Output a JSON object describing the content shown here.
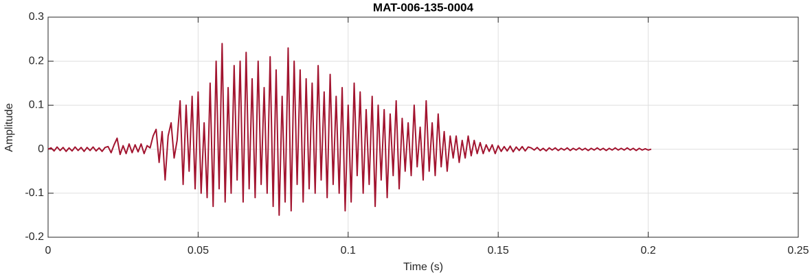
{
  "chart_data": {
    "type": "line",
    "title": "MAT-006-135-0004",
    "xlabel": "Time (s)",
    "ylabel": "Amplitude",
    "color": "#a2142f",
    "grid": true,
    "xlim": [
      0,
      0.25
    ],
    "xticks": [
      0,
      0.05,
      0.1,
      0.15,
      0.2,
      0.25
    ],
    "ylim": [
      -0.2,
      0.3
    ],
    "yticks": [
      -0.2,
      -0.1,
      0,
      0.1,
      0.2,
      0.3
    ],
    "x": [
      0,
      0.001,
      0.002,
      0.003,
      0.004,
      0.005,
      0.006,
      0.007,
      0.008,
      0.009,
      0.01,
      0.011,
      0.012,
      0.013,
      0.014,
      0.015,
      0.016,
      0.017,
      0.018,
      0.019,
      0.02,
      0.021,
      0.022,
      0.023,
      0.024,
      0.025,
      0.026,
      0.027,
      0.028,
      0.029,
      0.03,
      0.031,
      0.032,
      0.033,
      0.034,
      0.035,
      0.036,
      0.037,
      0.038,
      0.039,
      0.04,
      0.041,
      0.042,
      0.043,
      0.044,
      0.045,
      0.046,
      0.047,
      0.048,
      0.049,
      0.05,
      0.051,
      0.052,
      0.053,
      0.054,
      0.055,
      0.056,
      0.057,
      0.058,
      0.059,
      0.06,
      0.061,
      0.062,
      0.063,
      0.064,
      0.065,
      0.066,
      0.067,
      0.068,
      0.069,
      0.07,
      0.071,
      0.072,
      0.073,
      0.074,
      0.075,
      0.076,
      0.077,
      0.078,
      0.079,
      0.08,
      0.081,
      0.082,
      0.083,
      0.084,
      0.085,
      0.086,
      0.087,
      0.088,
      0.089,
      0.09,
      0.091,
      0.092,
      0.093,
      0.094,
      0.095,
      0.096,
      0.097,
      0.098,
      0.099,
      0.1,
      0.101,
      0.102,
      0.103,
      0.104,
      0.105,
      0.106,
      0.107,
      0.108,
      0.109,
      0.11,
      0.111,
      0.112,
      0.113,
      0.114,
      0.115,
      0.116,
      0.117,
      0.118,
      0.119,
      0.12,
      0.121,
      0.122,
      0.123,
      0.124,
      0.125,
      0.126,
      0.127,
      0.128,
      0.129,
      0.13,
      0.131,
      0.132,
      0.133,
      0.134,
      0.135,
      0.136,
      0.137,
      0.138,
      0.139,
      0.14,
      0.141,
      0.142,
      0.143,
      0.144,
      0.145,
      0.146,
      0.147,
      0.148,
      0.149,
      0.15,
      0.151,
      0.152,
      0.153,
      0.154,
      0.155,
      0.156,
      0.157,
      0.158,
      0.159,
      0.16,
      0.161,
      0.162,
      0.163,
      0.164,
      0.165,
      0.166,
      0.167,
      0.168,
      0.169,
      0.17,
      0.171,
      0.172,
      0.173,
      0.174,
      0.175,
      0.176,
      0.177,
      0.178,
      0.179,
      0.18,
      0.181,
      0.182,
      0.183,
      0.184,
      0.185,
      0.186,
      0.187,
      0.188,
      0.189,
      0.19,
      0.191,
      0.192,
      0.193,
      0.194,
      0.195,
      0.196,
      0.197,
      0.198,
      0.199,
      0.2,
      0.201
    ],
    "values": [
      0,
      0.003,
      -0.004,
      0.005,
      -0.003,
      0.004,
      -0.005,
      0.003,
      -0.004,
      0.005,
      -0.003,
      0.004,
      -0.005,
      0.004,
      -0.003,
      0.005,
      -0.004,
      0.003,
      -0.005,
      0.004,
      0.006,
      -0.008,
      0.01,
      0.025,
      -0.012,
      0.008,
      -0.01,
      0.012,
      -0.008,
      0.01,
      -0.006,
      0.012,
      -0.01,
      0.008,
      0.003,
      0.03,
      0.045,
      -0.03,
      0.04,
      -0.07,
      0.03,
      0.06,
      -0.02,
      0.02,
      0.11,
      -0.08,
      0.1,
      -0.05,
      0.12,
      -0.09,
      0.13,
      -0.1,
      0.06,
      -0.11,
      0.15,
      -0.13,
      0.2,
      -0.09,
      0.24,
      -0.12,
      0.14,
      -0.1,
      0.19,
      -0.07,
      0.2,
      -0.12,
      0.22,
      -0.09,
      0.16,
      -0.11,
      0.2,
      -0.08,
      0.14,
      -0.1,
      0.21,
      -0.13,
      0.18,
      -0.15,
      0.12,
      -0.12,
      0.23,
      -0.14,
      0.2,
      -0.08,
      0.18,
      -0.12,
      0.16,
      -0.09,
      0.15,
      -0.1,
      0.19,
      -0.07,
      0.13,
      -0.11,
      0.17,
      -0.08,
      0.12,
      -0.1,
      0.14,
      -0.14,
      0.1,
      -0.12,
      0.15,
      -0.06,
      0.13,
      -0.1,
      0.09,
      -0.08,
      0.12,
      -0.13,
      0.1,
      -0.07,
      0.09,
      -0.11,
      0.08,
      -0.06,
      0.11,
      -0.09,
      0.07,
      -0.05,
      0.06,
      -0.06,
      0.1,
      -0.04,
      0.05,
      -0.07,
      0.11,
      -0.05,
      0.06,
      -0.06,
      0.08,
      -0.04,
      0.04,
      -0.05,
      0.03,
      -0.02,
      0.03,
      -0.03,
      0.02,
      -0.02,
      0.03,
      -0.015,
      0.02,
      -0.01,
      0.015,
      -0.01,
      0.01,
      -0.005,
      0.01,
      -0.01,
      0.008,
      -0.005,
      0.006,
      -0.004,
      0.007,
      -0.006,
      0.005,
      -0.003,
      0.006,
      -0.004,
      0.005,
      0.003,
      -0.002,
      0.004,
      -0.003,
      0.002,
      -0.004,
      0.003,
      -0.002,
      0.003,
      -0.003,
      0.002,
      -0.002,
      0.003,
      -0.003,
      0.002,
      -0.002,
      0.003,
      -0.002,
      0.002,
      -0.003,
      0.002,
      -0.002,
      0.003,
      -0.002,
      0.002,
      -0.003,
      0.002,
      -0.002,
      0.003,
      -0.002,
      0.002,
      -0.002,
      0.003,
      -0.002,
      0.002,
      -0.003,
      0.002,
      -0.002,
      0.001,
      -0.002,
      0
    ]
  }
}
